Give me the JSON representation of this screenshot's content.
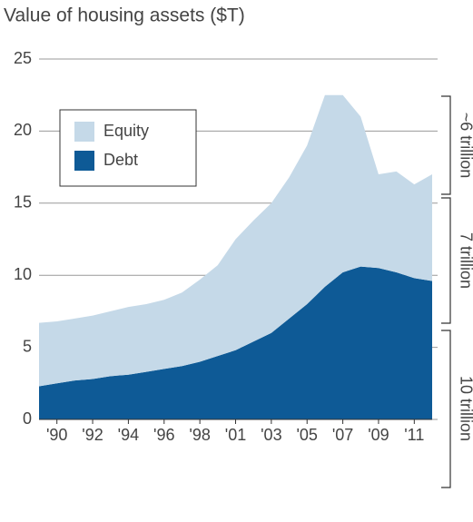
{
  "chart_data": {
    "type": "stacked_area",
    "title": "Value of housing assets ($T)",
    "categories": [
      null,
      "'90",
      null,
      "'92",
      null,
      "'94",
      null,
      "'96",
      null,
      "'98",
      null,
      "'01",
      null,
      "'03",
      null,
      "'05",
      null,
      "'07",
      null,
      "'09",
      null,
      "'11",
      null
    ],
    "series": [
      {
        "name": "Debt",
        "color": "#0e5a96",
        "values": [
          2.3,
          2.5,
          2.7,
          2.8,
          3.0,
          3.1,
          3.3,
          3.5,
          3.7,
          4.0,
          4.4,
          4.8,
          5.4,
          6.0,
          7.0,
          8.0,
          9.2,
          10.2,
          10.6,
          10.5,
          10.2,
          9.8,
          9.6
        ]
      },
      {
        "name": "Equity",
        "color": "#c5d9e8",
        "values": [
          4.4,
          4.3,
          4.3,
          4.4,
          4.5,
          4.7,
          4.7,
          4.8,
          5.1,
          5.7,
          6.3,
          7.7,
          8.4,
          9.0,
          9.8,
          11.0,
          13.3,
          12.3,
          10.4,
          6.5,
          7.0,
          6.5,
          7.4
        ]
      }
    ],
    "ylim": [
      0,
      25
    ],
    "yticks": [
      0,
      5,
      10,
      15,
      20,
      25
    ],
    "grid": true,
    "annotations": [
      "~6 trillion",
      "7 trillion",
      "10 trillion"
    ]
  }
}
